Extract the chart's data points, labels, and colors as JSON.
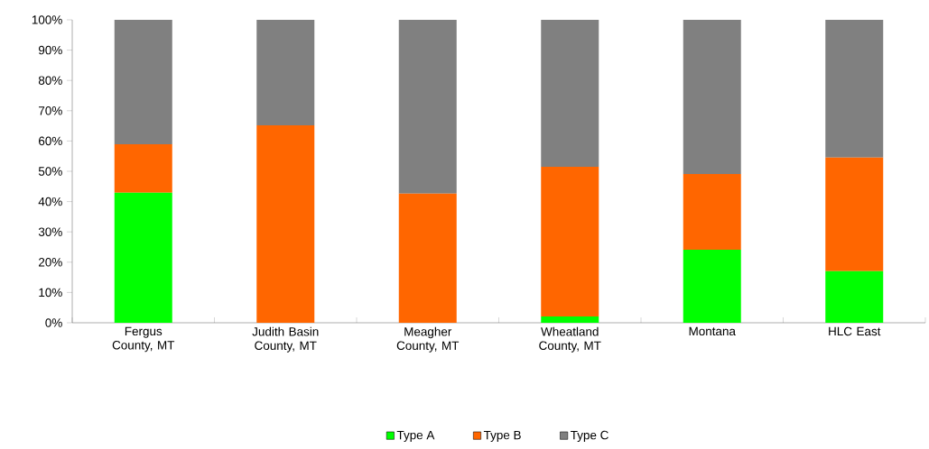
{
  "chart_data": {
    "type": "bar",
    "stacked": true,
    "categories": [
      "Fergus County, MT",
      "Judith Basin County, MT",
      "Meagher County, MT",
      "Wheatland County, MT",
      "Montana",
      "HLC East"
    ],
    "series": [
      {
        "name": "Type A",
        "color": "#00ff00",
        "values": [
          42.9,
          0,
          0,
          2.1,
          24.1,
          17.0
        ]
      },
      {
        "name": "Type B",
        "color": "#ff6600",
        "values": [
          16.0,
          65.2,
          42.6,
          49.4,
          25.0,
          37.5
        ]
      },
      {
        "name": "Type C",
        "color": "#808080",
        "values": [
          41.1,
          34.8,
          57.4,
          48.5,
          50.9,
          45.5
        ]
      }
    ],
    "ylim": [
      0,
      100
    ],
    "yticks": [
      {
        "value": 0,
        "label": "0%"
      },
      {
        "value": 10,
        "label": "10%"
      },
      {
        "value": 20,
        "label": "20%"
      },
      {
        "value": 30,
        "label": "30%"
      },
      {
        "value": 40,
        "label": "40%"
      },
      {
        "value": 50,
        "label": "50%"
      },
      {
        "value": 60,
        "label": "60%"
      },
      {
        "value": 70,
        "label": "70%"
      },
      {
        "value": 80,
        "label": "80%"
      },
      {
        "value": 90,
        "label": "90%"
      },
      {
        "value": 100,
        "label": "100%"
      }
    ],
    "legend": "bottom"
  }
}
